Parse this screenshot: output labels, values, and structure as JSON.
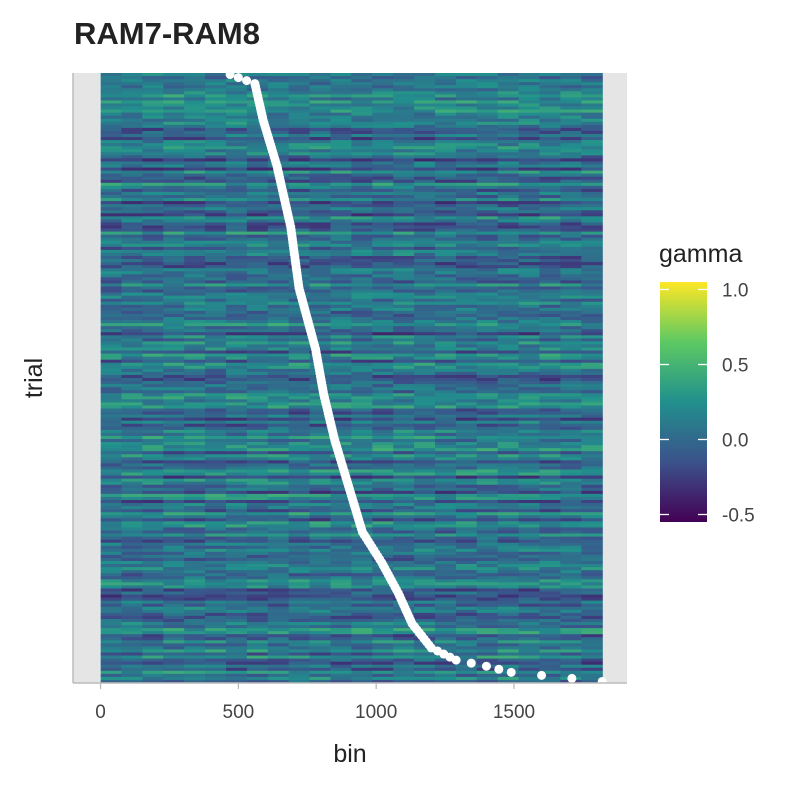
{
  "chart_data": {
    "type": "heatmap",
    "title": "RAM7-RAM8",
    "xlabel": "bin",
    "ylabel": "trial",
    "x_range": [
      0,
      1820
    ],
    "xlim": [
      -100,
      1910
    ],
    "x_ticks": [
      0,
      500,
      1000,
      1500
    ],
    "x_tick_labels": [
      "0",
      "500",
      "1000",
      "1500"
    ],
    "y_ticks": [],
    "n_trials": 200,
    "grid": true,
    "legend": {
      "title": "gamma",
      "placement": "right",
      "min": -0.55,
      "max": 1.05,
      "ticks": [
        1.0,
        0.5,
        0.0,
        -0.5
      ],
      "tick_labels": [
        "1.0",
        "0.5",
        "0.0",
        "-0.5"
      ],
      "colormap": "viridis",
      "stops": [
        "#440154",
        "#3b528b",
        "#21908d",
        "#5dc963",
        "#fde725"
      ]
    },
    "missing_color": "#808080",
    "value_summary": {
      "typical_range": [
        -0.4,
        0.5
      ],
      "median": 0.05,
      "max_observed": 1.0
    },
    "event_markers": {
      "color": "#ffffff",
      "description_points": [
        {
          "trial_from_top": 0,
          "bin": 470
        },
        {
          "trial_from_top": 3,
          "bin": 560
        },
        {
          "trial_from_top": 15,
          "bin": 590
        },
        {
          "trial_from_top": 30,
          "bin": 640
        },
        {
          "trial_from_top": 50,
          "bin": 690
        },
        {
          "trial_from_top": 70,
          "bin": 720
        },
        {
          "trial_from_top": 90,
          "bin": 780
        },
        {
          "trial_from_top": 105,
          "bin": 810
        },
        {
          "trial_from_top": 120,
          "bin": 850
        },
        {
          "trial_from_top": 135,
          "bin": 900
        },
        {
          "trial_from_top": 150,
          "bin": 950
        },
        {
          "trial_from_top": 160,
          "bin": 1020
        },
        {
          "trial_from_top": 170,
          "bin": 1080
        },
        {
          "trial_from_top": 180,
          "bin": 1130
        },
        {
          "trial_from_top": 188,
          "bin": 1200
        },
        {
          "trial_from_top": 192,
          "bin": 1290
        },
        {
          "trial_from_top": 194,
          "bin": 1400
        },
        {
          "trial_from_top": 196,
          "bin": 1490
        },
        {
          "trial_from_top": 199,
          "bin": 1820
        }
      ]
    }
  }
}
